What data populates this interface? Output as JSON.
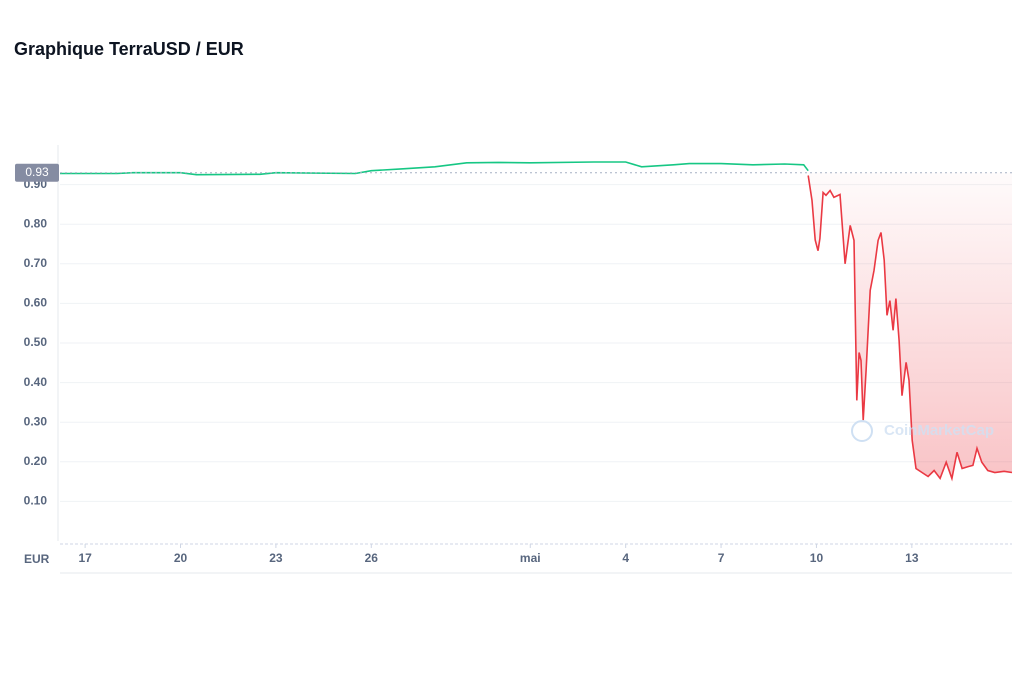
{
  "chart_data": {
    "type": "line",
    "title": "Graphique TerraUSD / EUR",
    "currency_label": "EUR",
    "watermark": "CoinMarketCap",
    "current_price": 0.93,
    "xlim": [
      16.21,
      46.15
    ],
    "xticks": [
      17,
      20,
      23,
      26,
      {
        "value": 31,
        "label": "mai"
      },
      {
        "value": 34,
        "label": "4"
      },
      {
        "value": 37,
        "label": "7"
      },
      {
        "value": 40,
        "label": "10"
      },
      {
        "value": 43,
        "label": "13"
      }
    ],
    "ylim": [
      0,
      1
    ],
    "yticks": [
      {
        "value": 0.1,
        "label": "0.10"
      },
      {
        "value": 0.2,
        "label": "0.20"
      },
      {
        "value": 0.3,
        "label": "0.30"
      },
      {
        "value": 0.4,
        "label": "0.40"
      },
      {
        "value": 0.5,
        "label": "0.50"
      },
      {
        "value": 0.6,
        "label": "0.60"
      },
      {
        "value": 0.7,
        "label": "0.70"
      },
      {
        "value": 0.8,
        "label": "0.80"
      },
      {
        "value": 0.9,
        "label": "0.90"
      }
    ],
    "grid": true,
    "series": [
      {
        "color": "#16c784",
        "x": [
          16.21,
          18,
          18.5,
          20,
          20.5,
          22.5,
          23,
          25.5,
          26,
          27,
          28,
          29,
          30,
          31,
          33,
          34,
          34.5,
          35.5,
          36,
          37,
          38,
          39,
          39.6,
          39.74
        ],
        "values": [
          0.928,
          0.928,
          0.93,
          0.93,
          0.925,
          0.926,
          0.93,
          0.928,
          0.935,
          0.94,
          0.945,
          0.955,
          0.956,
          0.955,
          0.957,
          0.957,
          0.945,
          0.95,
          0.953,
          0.953,
          0.95,
          0.952,
          0.95,
          0.935
        ]
      },
      {
        "color": "#ea3943",
        "x": [
          39.74,
          39.86,
          39.96,
          40.05,
          40.11,
          40.21,
          40.3,
          40.43,
          40.55,
          40.74,
          40.9,
          41.06,
          41.18,
          41.27,
          41.34,
          41.4,
          41.47,
          41.56,
          41.69,
          41.81,
          41.94,
          42.03,
          42.13,
          42.22,
          42.31,
          42.41,
          42.5,
          42.6,
          42.69,
          42.82,
          42.91,
          43.01,
          43.13,
          43.32,
          43.51,
          43.7,
          43.89,
          44.08,
          44.26,
          44.42,
          44.58,
          44.77,
          44.92,
          45.05,
          45.2,
          45.39,
          45.61,
          45.9,
          46.15
        ],
        "values": [
          0.923,
          0.86,
          0.76,
          0.733,
          0.764,
          0.88,
          0.873,
          0.885,
          0.868,
          0.875,
          0.7,
          0.797,
          0.759,
          0.355,
          0.476,
          0.456,
          0.305,
          0.431,
          0.633,
          0.683,
          0.759,
          0.779,
          0.709,
          0.57,
          0.607,
          0.532,
          0.612,
          0.506,
          0.367,
          0.451,
          0.406,
          0.254,
          0.183,
          0.173,
          0.163,
          0.178,
          0.158,
          0.199,
          0.158,
          0.224,
          0.183,
          0.188,
          0.191,
          0.234,
          0.199,
          0.178,
          0.173,
          0.176,
          0.173
        ]
      }
    ]
  }
}
